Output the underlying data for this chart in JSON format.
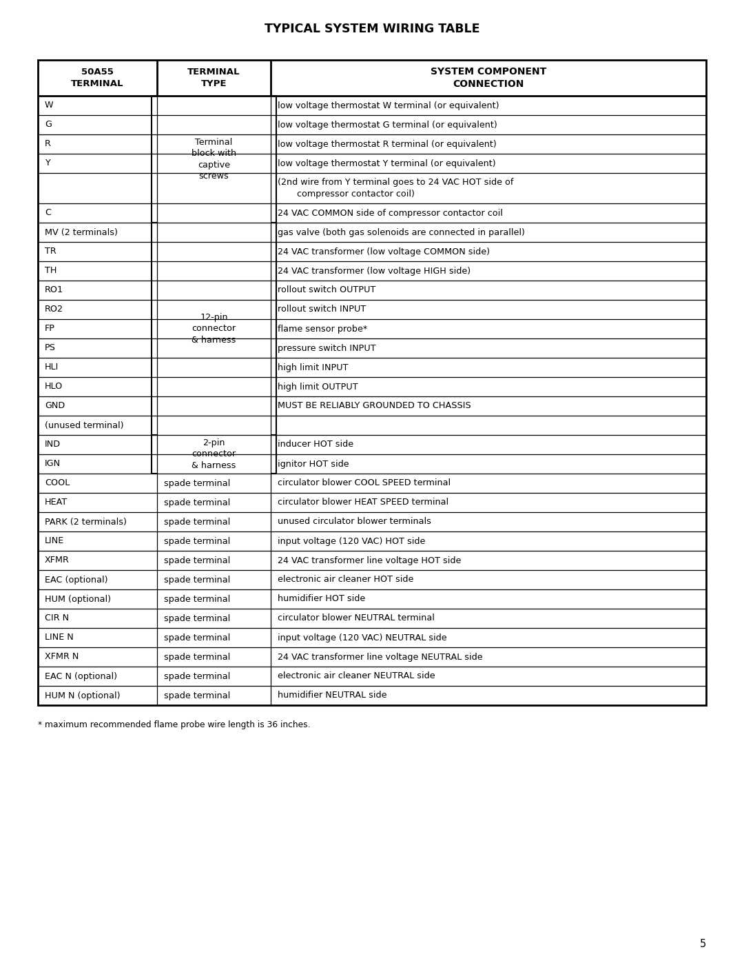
{
  "title": "TYPICAL SYSTEM WIRING TABLE",
  "col_headers": [
    "50A55\nTERMINAL",
    "TERMINAL\nTYPE",
    "SYSTEM COMPONENT\nCONNECTION"
  ],
  "footnote": "* maximum recommended flame probe wire length is 36 inches.",
  "page_number": "5",
  "rows": [
    {
      "terminal": "W",
      "connection": "low voltage thermostat W terminal (or equivalent)"
    },
    {
      "terminal": "G",
      "connection": "low voltage thermostat G terminal (or equivalent)"
    },
    {
      "terminal": "R",
      "connection": "low voltage thermostat R terminal (or equivalent)"
    },
    {
      "terminal": "Y",
      "connection": "low voltage thermostat Y terminal (or equivalent)"
    },
    {
      "terminal": "",
      "connection": "(2nd wire from Y terminal goes to 24 VAC HOT side of\n       compressor contactor coil)"
    },
    {
      "terminal": "C",
      "connection": "24 VAC COMMON side of compressor contactor coil"
    },
    {
      "terminal": "MV (2 terminals)",
      "connection": "gas valve (both gas solenoids are connected in parallel)"
    },
    {
      "terminal": "TR",
      "connection": "24 VAC transformer (low voltage COMMON side)"
    },
    {
      "terminal": "TH",
      "connection": "24 VAC transformer (low voltage HIGH side)"
    },
    {
      "terminal": "RO1",
      "connection": "rollout switch OUTPUT"
    },
    {
      "terminal": "RO2",
      "connection": "rollout switch INPUT"
    },
    {
      "terminal": "FP",
      "connection": "flame sensor probe*"
    },
    {
      "terminal": "PS",
      "connection": "pressure switch INPUT"
    },
    {
      "terminal": "HLI",
      "connection": "high limit INPUT"
    },
    {
      "terminal": "HLO",
      "connection": "high limit OUTPUT"
    },
    {
      "terminal": "GND",
      "connection": "MUST BE RELIABLY GROUNDED TO CHASSIS"
    },
    {
      "terminal": "(unused terminal)",
      "connection": ""
    },
    {
      "terminal": "IND",
      "connection": "inducer HOT side"
    },
    {
      "terminal": "IGN",
      "connection": "ignitor HOT side"
    },
    {
      "terminal": "COOL",
      "type": "spade terminal",
      "connection": "circulator blower COOL SPEED terminal"
    },
    {
      "terminal": "HEAT",
      "type": "spade terminal",
      "connection": "circulator blower HEAT SPEED terminal"
    },
    {
      "terminal": "PARK (2 terminals)",
      "type": "spade terminal",
      "connection": "unused circulator blower terminals"
    },
    {
      "terminal": "LINE",
      "type": "spade terminal",
      "connection": "input voltage (120 VAC) HOT side"
    },
    {
      "terminal": "XFMR",
      "type": "spade terminal",
      "connection": "24 VAC transformer line voltage HOT side"
    },
    {
      "terminal": "EAC (optional)",
      "type": "spade terminal",
      "connection": "electronic air cleaner HOT side"
    },
    {
      "terminal": "HUM (optional)",
      "type": "spade terminal",
      "connection": "humidifier HOT side"
    },
    {
      "terminal": "CIR N",
      "type": "spade terminal",
      "connection": "circulator blower NEUTRAL terminal"
    },
    {
      "terminal": "LINE N",
      "type": "spade terminal",
      "connection": "input voltage (120 VAC) NEUTRAL side"
    },
    {
      "terminal": "XFMR N",
      "type": "spade terminal",
      "connection": "24 VAC transformer line voltage NEUTRAL side"
    },
    {
      "terminal": "EAC N (optional)",
      "type": "spade terminal",
      "connection": "electronic air cleaner NEUTRAL side"
    },
    {
      "terminal": "HUM N (optional)",
      "type": "spade terminal",
      "connection": "humidifier NEUTRAL side"
    }
  ],
  "group1_type": "Terminal\nblock with\ncaptive\nscrews",
  "group2_type": "12-pin\nconnector\n& harness",
  "group3_type": "2-pin\nconnector\n& harness",
  "background": "#ffffff",
  "text_color": "#000000"
}
